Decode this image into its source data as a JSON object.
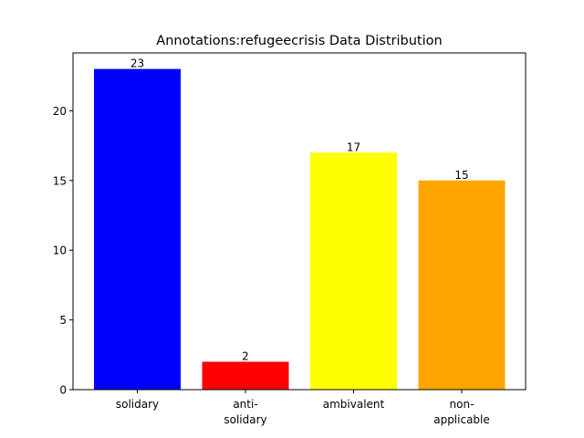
{
  "chart_data": {
    "type": "bar",
    "title": "Annotations:refugeecrisis Data Distribution",
    "xlabel": "",
    "ylabel": "",
    "categories": [
      [
        "solidary"
      ],
      [
        "anti-",
        "solidary"
      ],
      [
        "ambivalent"
      ],
      [
        "non-",
        "applicable"
      ]
    ],
    "values": [
      23,
      2,
      17,
      15
    ],
    "data_labels": [
      "23",
      "2",
      "17",
      "15"
    ],
    "colors": [
      "#0000ff",
      "#ff0000",
      "#ffff00",
      "#ffa500"
    ],
    "ylim": [
      0,
      24.15
    ],
    "yticks": [
      0,
      5,
      10,
      15,
      20
    ],
    "ytick_labels": [
      "0",
      "5",
      "10",
      "15",
      "20"
    ],
    "grid": false,
    "legend": "none"
  }
}
